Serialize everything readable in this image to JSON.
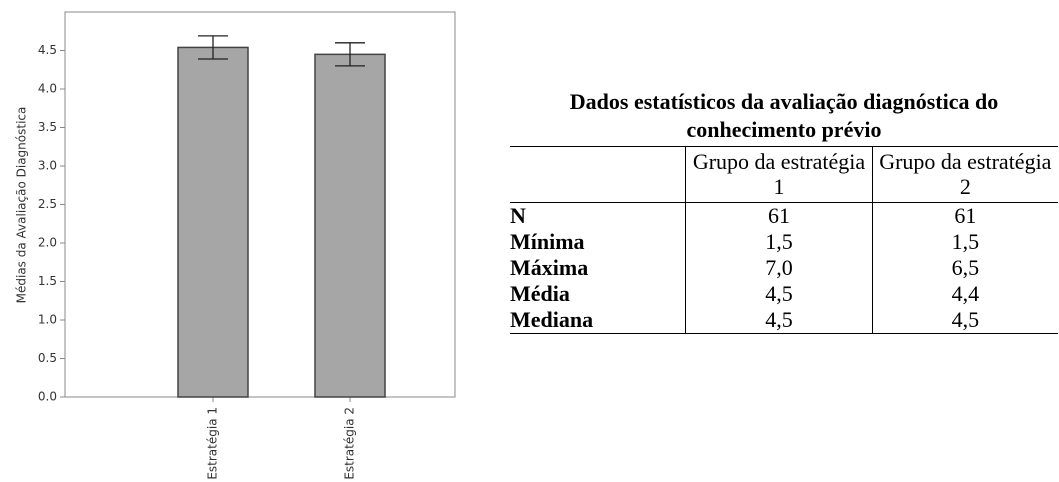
{
  "chart_data": {
    "type": "bar",
    "y_label": "Médias da Avaliação Diagnóstica",
    "categories": [
      "Estratégia 1",
      "Estratégia 2"
    ],
    "values": [
      4.54,
      4.45
    ],
    "errors": [
      0.15,
      0.15
    ],
    "color": "#a6a6a6",
    "ylim": [
      0,
      5.0
    ],
    "yticks": [
      {
        "value": 0,
        "label": "0.0"
      },
      0.5,
      {
        "value": 1,
        "label": "1.0"
      },
      1.5,
      {
        "value": 2,
        "label": "2.0"
      },
      2.5,
      {
        "value": 3,
        "label": "3.0"
      },
      3.5,
      {
        "value": 4,
        "label": "4.0"
      },
      4.5
    ],
    "grid": false
  },
  "table": {
    "title": "Dados estatísticos da avaliação diagnóstica do conhecimento prévio",
    "header": [
      "Grupo da estratégia 1",
      "Grupo da estratégia 2"
    ],
    "rows": [
      [
        "N",
        "61",
        "61"
      ],
      [
        "Mínima",
        "1,5",
        "1,5"
      ],
      [
        "Máxima",
        "7,0",
        "6,5"
      ],
      [
        "Média",
        "4,5",
        "4,4"
      ],
      [
        "Mediana",
        "4,5",
        "4,5"
      ]
    ]
  }
}
